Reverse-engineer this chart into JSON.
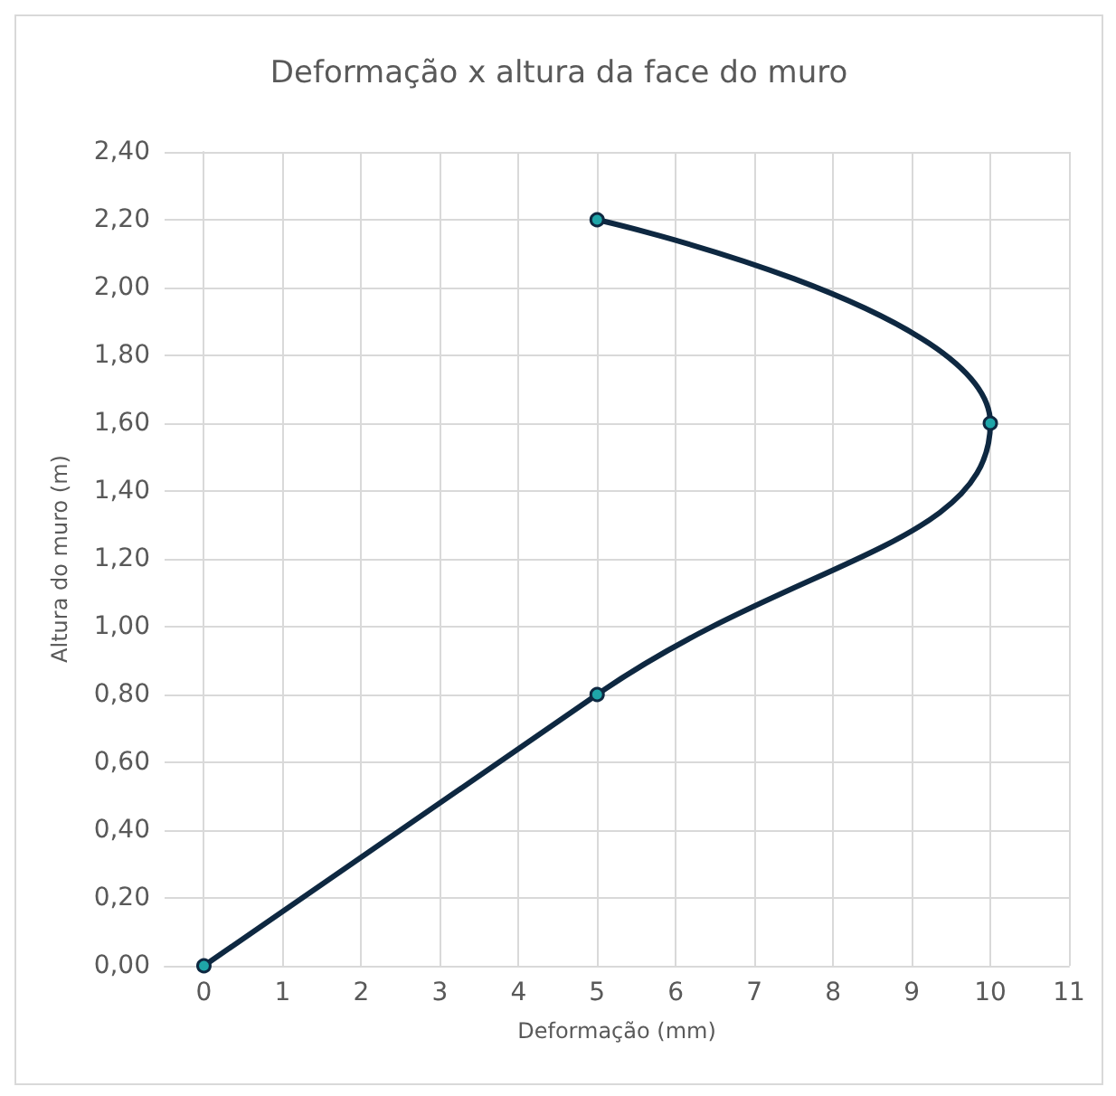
{
  "chart_data": {
    "type": "line",
    "title": "Deformação x altura da face do muro",
    "xlabel": "Deformação (mm)",
    "ylabel": "Altura do muro (m)",
    "series": [
      {
        "color": "#0e2841",
        "x": [
          0,
          5,
          10,
          5
        ],
        "values": [
          0,
          0.8,
          1.6,
          2.2
        ]
      }
    ],
    "xlim": [
      -0.5,
      11
    ],
    "xticks": [
      0,
      1,
      2,
      3,
      4,
      5,
      6,
      7,
      8,
      9,
      10,
      11
    ],
    "ylim": [
      0,
      2.4
    ],
    "yticks": [
      {
        "value": 0,
        "label": "0,00"
      },
      {
        "value": 0.2,
        "label": "0,20"
      },
      {
        "value": 0.4,
        "label": "0,40"
      },
      {
        "value": 0.6,
        "label": "0,60"
      },
      {
        "value": 0.8,
        "label": "0,80"
      },
      {
        "value": 1,
        "label": "1,00"
      },
      {
        "value": 1.2,
        "label": "1,20"
      },
      {
        "value": 1.4,
        "label": "1,40"
      },
      {
        "value": 1.6,
        "label": "1,60"
      },
      {
        "value": 1.8,
        "label": "1,80"
      },
      {
        "value": 2,
        "label": "2,00"
      },
      {
        "value": 2.2,
        "label": "2,20"
      },
      {
        "value": 2.4,
        "label": "2,40"
      }
    ],
    "grid": true,
    "marker": "circle",
    "line_style": "solid"
  }
}
